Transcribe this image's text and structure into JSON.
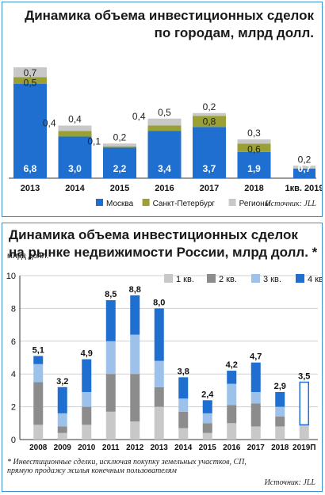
{
  "chart_data": [
    {
      "type": "bar",
      "title": "Динамика объема инвестиционных сделок по городам, млрд долл.",
      "title_lines": [
        "Динамика объема инвестиционных сделок",
        "по городам, млрд долл."
      ],
      "categories": [
        "2013",
        "2014",
        "2015",
        "2016",
        "2017",
        "2018",
        "1кв. 2019"
      ],
      "series": [
        {
          "name": "Москва",
          "color": "#1f6fd0",
          "values": [
            6.8,
            3.0,
            2.2,
            3.4,
            3.7,
            1.9,
            0.7
          ]
        },
        {
          "name": "Санкт-Петербург",
          "color": "#9aa035",
          "values": [
            0.5,
            0.4,
            0.1,
            0.4,
            0.8,
            0.6,
            0
          ]
        },
        {
          "name": "Регионы",
          "color": "#c8c8c8",
          "values": [
            0.7,
            0.4,
            0.2,
            0.5,
            0.2,
            0.3,
            0.2
          ]
        }
      ],
      "labels": [
        [
          "6,8",
          "0,5",
          "0,7"
        ],
        [
          "3,0",
          "0,4",
          "0,4"
        ],
        [
          "2,2",
          "0,1",
          "0,2"
        ],
        [
          "3,4",
          "0,4",
          "0,5"
        ],
        [
          "3,7",
          "0,8",
          "0,2"
        ],
        [
          "1,9",
          "0,6",
          "0,3"
        ],
        [
          "0,7",
          "",
          "0,2"
        ]
      ],
      "source": "Источник: JLL"
    },
    {
      "type": "bar",
      "title": "Динамика объема инвестиционных сделок на рынке недвижимости России, млрд долл. *",
      "title_lines": [
        "Динамика объема инвестиционных сделок",
        "на рынке недвижимости России, млрд долл. *"
      ],
      "ylabel": "млрд долл.",
      "ylim": [
        0,
        10
      ],
      "yticks": [
        "0",
        "2",
        "4",
        "6",
        "8",
        "10"
      ],
      "categories": [
        "2008",
        "2009",
        "2010",
        "2011",
        "2012",
        "2013",
        "2014",
        "2015",
        "2016",
        "2017",
        "2018",
        "2019П"
      ],
      "series": [
        {
          "name": "1 кв.",
          "color": "#c8c8c8",
          "values": [
            0.9,
            0.4,
            0.9,
            1.7,
            1.1,
            2.0,
            0.7,
            0.4,
            1.0,
            0.8,
            0.8,
            0.9
          ]
        },
        {
          "name": "2 кв.",
          "color": "#8c8c8c",
          "values": [
            2.6,
            0.4,
            1.1,
            2.3,
            2.9,
            1.2,
            1.0,
            0.6,
            1.1,
            1.4,
            0.6,
            0
          ]
        },
        {
          "name": "3 кв.",
          "color": "#9cc2ec",
          "values": [
            1.1,
            0.8,
            0.9,
            2.0,
            2.4,
            1.6,
            0.8,
            0.6,
            1.3,
            0.7,
            0.6,
            0
          ]
        },
        {
          "name": "4 кв.",
          "color": "#1f6fd0",
          "values": [
            0.5,
            1.6,
            2.0,
            2.5,
            2.4,
            3.2,
            1.3,
            0.8,
            0.8,
            1.8,
            0.9,
            0
          ]
        }
      ],
      "totals": [
        "5,1",
        "3,2",
        "4,9",
        "8,5",
        "8,8",
        "8,0",
        "3,8",
        "2,4",
        "4,2",
        "4,7",
        "2,9",
        "3,5"
      ],
      "forecast_total": 3.5,
      "footnote_lines": [
        "* Инвестиционные сделки, исключая покупку земельных участков, СП,",
        "прямую продажу жилья конечным пользователям"
      ],
      "source": "Источник: JLL"
    }
  ]
}
